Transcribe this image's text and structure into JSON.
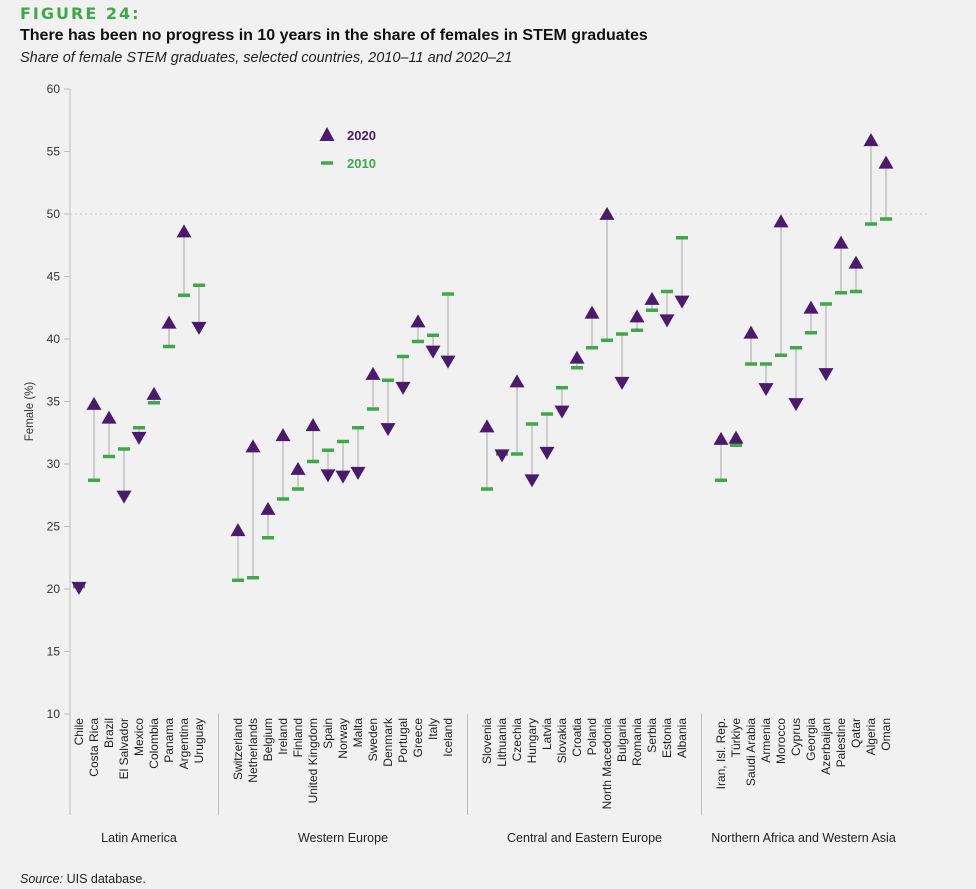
{
  "figure": {
    "label": "FIGURE 24:",
    "title": "There has been no progress in 10 years in the share of females in STEM graduates",
    "subtitle": "Share of female STEM graduates, selected countries, 2010–11 and 2020–21",
    "source_label": "Source:",
    "source_text": "UIS database."
  },
  "colors": {
    "marker_2020": "#4a1a6b",
    "marker_2010": "#3ea84a",
    "connector": "#b4b4b4",
    "axis": "#bdbdbd",
    "reference": "#c8c8c8",
    "legend_2020_text": "#4a1a6b",
    "legend_2010_text": "#3ea84a"
  },
  "chart_data": {
    "type": "dot-range",
    "title": "There has been no progress in 10 years in the share of females in STEM graduates",
    "ylabel": "Female (%)",
    "xlabel": "",
    "ylim": [
      10,
      60
    ],
    "yticks": [
      10,
      15,
      20,
      25,
      30,
      35,
      40,
      45,
      50,
      55,
      60
    ],
    "reference_line": 50,
    "legend": [
      {
        "name": "2020",
        "marker": "triangle"
      },
      {
        "name": "2010",
        "marker": "dash"
      }
    ],
    "legend_position": "top-left",
    "direction_note": "triangle points up when 2020 > 2010, down when 2020 < 2010",
    "groups": [
      {
        "name": "Latin America",
        "countries": [
          {
            "name": "Chile",
            "v2010": 20.2,
            "v2020": 20.1
          },
          {
            "name": "Costa Rica",
            "v2010": 28.7,
            "v2020": 34.8
          },
          {
            "name": "Brazil",
            "v2010": 30.6,
            "v2020": 33.7
          },
          {
            "name": "El Salvador",
            "v2010": 31.2,
            "v2020": 27.4
          },
          {
            "name": "Mexico",
            "v2010": 32.9,
            "v2020": 32.1
          },
          {
            "name": "Colombia",
            "v2010": 34.9,
            "v2020": 35.6
          },
          {
            "name": "Panama",
            "v2010": 39.4,
            "v2020": 41.3
          },
          {
            "name": "Argentina",
            "v2010": 43.5,
            "v2020": 48.6
          },
          {
            "name": "Uruguay",
            "v2010": 44.3,
            "v2020": 40.9
          }
        ]
      },
      {
        "name": "Western Europe",
        "countries": [
          {
            "name": "Switzerland",
            "v2010": 20.7,
            "v2020": 24.7
          },
          {
            "name": "Netherlands",
            "v2010": 20.9,
            "v2020": 31.4
          },
          {
            "name": "Belgium",
            "v2010": 24.1,
            "v2020": 26.4
          },
          {
            "name": "Ireland",
            "v2010": 27.2,
            "v2020": 32.3
          },
          {
            "name": "Finland",
            "v2010": 28.0,
            "v2020": 29.6
          },
          {
            "name": "United Kingdom",
            "v2010": 30.2,
            "v2020": 33.1
          },
          {
            "name": "Spain",
            "v2010": 31.1,
            "v2020": 29.1
          },
          {
            "name": "Norway",
            "v2010": 31.8,
            "v2020": 29.0
          },
          {
            "name": "Malta",
            "v2010": 32.9,
            "v2020": 29.3
          },
          {
            "name": "Sweden",
            "v2010": 34.4,
            "v2020": 37.2
          },
          {
            "name": "Denmark",
            "v2010": 36.7,
            "v2020": 32.8
          },
          {
            "name": "Portugal",
            "v2010": 38.6,
            "v2020": 36.1
          },
          {
            "name": "Greece",
            "v2010": 39.8,
            "v2020": 41.4
          },
          {
            "name": "Italy",
            "v2010": 40.3,
            "v2020": 39.0
          },
          {
            "name": "Iceland",
            "v2010": 43.6,
            "v2020": 38.2
          }
        ]
      },
      {
        "name": "Central and Eastern Europe",
        "countries": [
          {
            "name": "Slovenia",
            "v2010": 28.0,
            "v2020": 33.0
          },
          {
            "name": "Lithuania",
            "v2010": 30.8,
            "v2020": 30.7
          },
          {
            "name": "Czechia",
            "v2010": 30.8,
            "v2020": 36.6
          },
          {
            "name": "Hungary",
            "v2010": 33.2,
            "v2020": 28.7
          },
          {
            "name": "Latvia",
            "v2010": 34.0,
            "v2020": 30.9
          },
          {
            "name": "Slovakia",
            "v2010": 36.1,
            "v2020": 34.2
          },
          {
            "name": "Croatia",
            "v2010": 37.7,
            "v2020": 38.5
          },
          {
            "name": "Poland",
            "v2010": 39.3,
            "v2020": 42.1
          },
          {
            "name": "North Macedonia",
            "v2010": 39.9,
            "v2020": 50.0
          },
          {
            "name": "Bulgaria",
            "v2010": 40.4,
            "v2020": 36.5
          },
          {
            "name": "Romania",
            "v2010": 40.7,
            "v2020": 41.8
          },
          {
            "name": "Serbia",
            "v2010": 42.3,
            "v2020": 43.2
          },
          {
            "name": "Estonia",
            "v2010": 43.8,
            "v2020": 41.5
          },
          {
            "name": "Albania",
            "v2010": 48.1,
            "v2020": 43.0
          }
        ]
      },
      {
        "name": "Northern Africa and Western Asia",
        "countries": [
          {
            "name": "Iran, Isl. Rep.",
            "v2010": 28.7,
            "v2020": 32.0
          },
          {
            "name": "Türkiye",
            "v2010": 31.5,
            "v2020": 32.1
          },
          {
            "name": "Saudi Arabia",
            "v2010": 38.0,
            "v2020": 40.5
          },
          {
            "name": "Armenia",
            "v2010": 38.0,
            "v2020": 36.0
          },
          {
            "name": "Morocco",
            "v2010": 38.7,
            "v2020": 49.4
          },
          {
            "name": "Cyprus",
            "v2010": 39.3,
            "v2020": 34.8
          },
          {
            "name": "Georgia",
            "v2010": 40.5,
            "v2020": 42.5
          },
          {
            "name": "Azerbaijan",
            "v2010": 42.8,
            "v2020": 37.2
          },
          {
            "name": "Palestine",
            "v2010": 43.7,
            "v2020": 47.7
          },
          {
            "name": "Qatar",
            "v2010": 43.8,
            "v2020": 46.1
          },
          {
            "name": "Algeria",
            "v2010": 49.2,
            "v2020": 55.9
          },
          {
            "name": "Oman",
            "v2010": 49.6,
            "v2020": 54.1
          }
        ]
      }
    ]
  }
}
